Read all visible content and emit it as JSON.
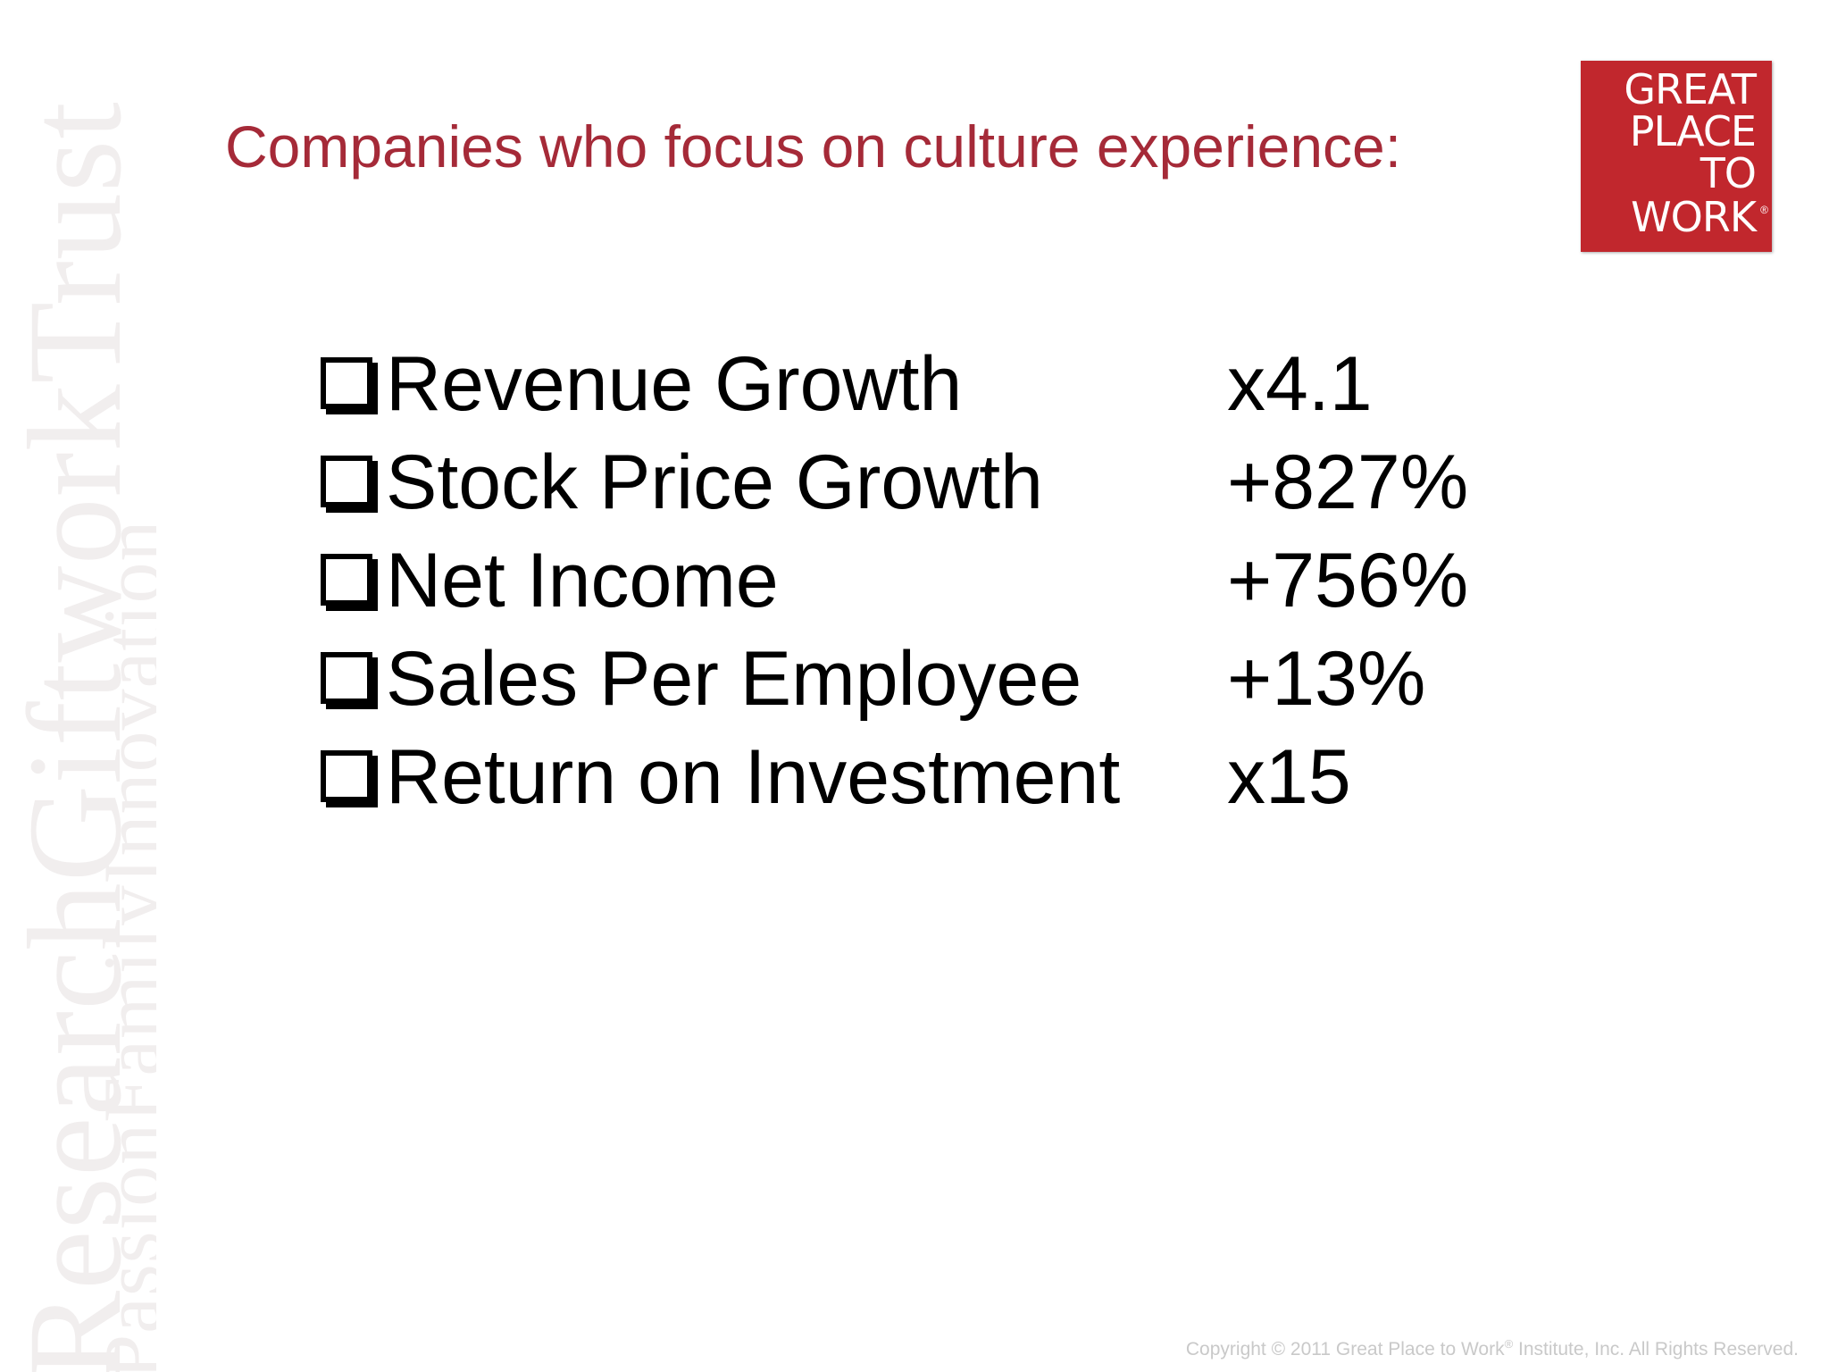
{
  "watermark": {
    "line1": "ResearchGiftworkTrust",
    "line2": "PassionFamilyInnovation"
  },
  "title": "Companies who focus on culture experience:",
  "logo": {
    "lines": [
      "GREAT",
      "PLACE",
      "TO",
      "WORK"
    ],
    "reg_mark": "®",
    "color": "#c1272d"
  },
  "metrics": [
    {
      "label": "Revenue Growth",
      "value": "x4.1"
    },
    {
      "label": "Stock Price Growth",
      "value": "+827%"
    },
    {
      "label": "Net Income",
      "value": "+756%"
    },
    {
      "label": "Sales Per Employee",
      "value": "+13%"
    },
    {
      "label": "Return on Investment",
      "value": "x15"
    }
  ],
  "footer": {
    "copyright_pre": "Copyright © 2011 Great Place to Work",
    "reg_mark": "®",
    "copyright_post": " Institute, Inc. All Rights Reserved."
  },
  "colors": {
    "title": "#a52a38",
    "watermark": "#f1eeee",
    "footer": "#c9c9c9"
  }
}
